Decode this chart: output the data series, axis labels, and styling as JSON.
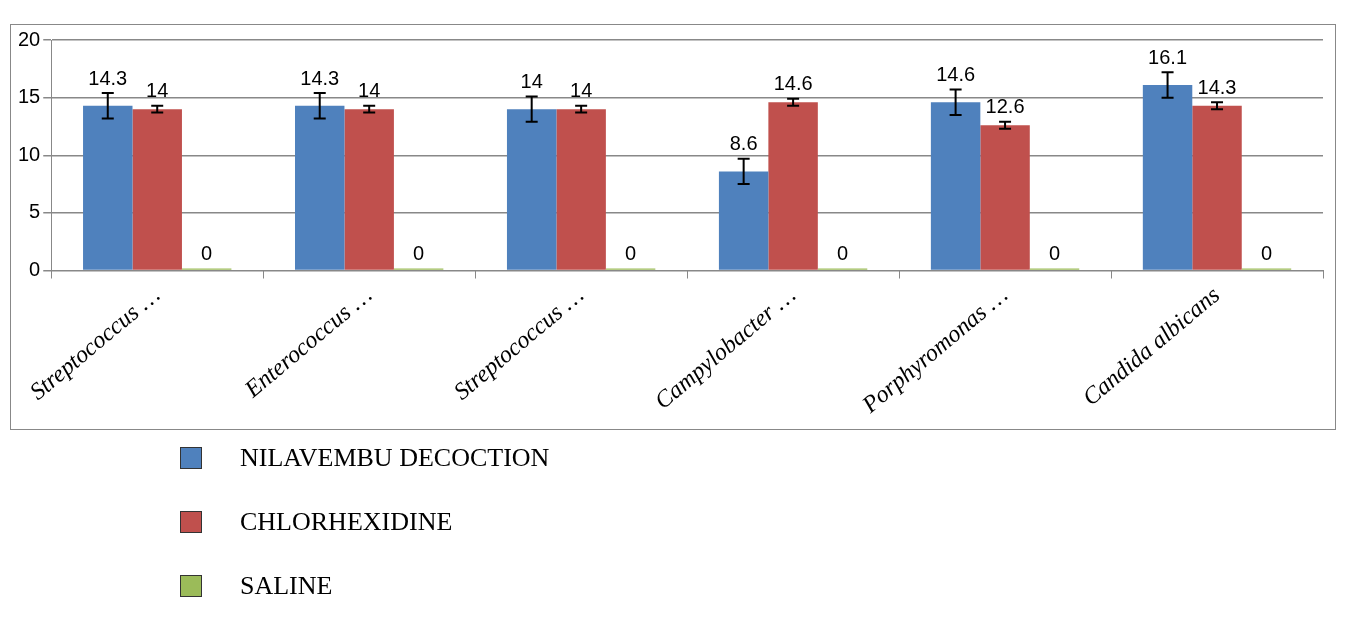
{
  "chart_data": {
    "type": "bar",
    "categories": [
      "Streptococcus …",
      "Enterococcus …",
      "Streptococcus …",
      "Campylobacter …",
      "Porphyromonas …",
      "Candida albicans"
    ],
    "series": [
      {
        "name": "NILAVEMBU DECOCTION",
        "color": "#4f81bd",
        "values": [
          14.3,
          14.3,
          14,
          8.6,
          14.6,
          16.1
        ],
        "errors": [
          1.1,
          1.1,
          1.1,
          1.1,
          1.1,
          1.1
        ]
      },
      {
        "name": "CHLORHEXIDINE",
        "color": "#c0504d",
        "values": [
          14,
          14,
          14,
          14.6,
          12.6,
          14.3
        ],
        "errors": [
          0.3,
          0.3,
          0.3,
          0.3,
          0.3,
          0.3
        ]
      },
      {
        "name": "SALINE",
        "color": "#9bbb59",
        "values": [
          0,
          0,
          0,
          0,
          0,
          0
        ]
      }
    ],
    "ylim": [
      0,
      20
    ],
    "yticks": [
      0,
      5,
      10,
      15,
      20
    ],
    "grid": "y",
    "legend": "bottom",
    "data_labels": true
  }
}
